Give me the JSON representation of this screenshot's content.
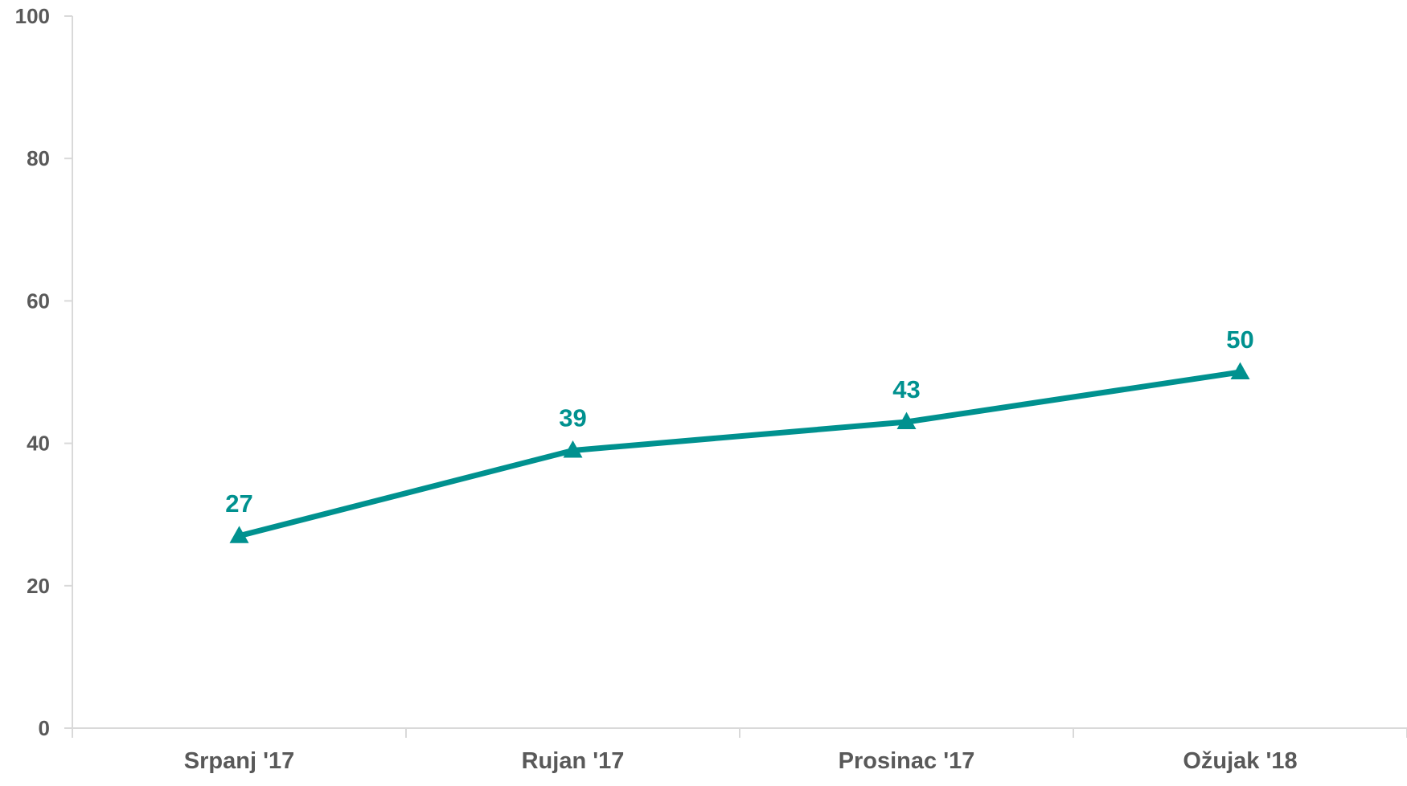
{
  "chart_data": {
    "type": "line",
    "title": "",
    "xlabel": "",
    "ylabel": "",
    "categories": [
      "Srpanj '17",
      "Rujan '17",
      "Prosinac '17",
      "Ožujak '18"
    ],
    "series": [
      {
        "values": [
          27,
          39,
          43,
          50
        ],
        "color": "#00918F",
        "marker": "triangle"
      }
    ],
    "data_labels": [
      "27",
      "39",
      "43",
      "50"
    ],
    "ylim": [
      0,
      100
    ],
    "yticks": [
      0,
      20,
      40,
      60,
      80,
      100
    ],
    "ytick_labels": [
      "0",
      "20",
      "40",
      "60",
      "80",
      "100"
    ],
    "grid": false,
    "legend": "none",
    "colors": {
      "axis": "#D9D9D9",
      "tick_text": "#595959",
      "series": "#00918F"
    }
  }
}
